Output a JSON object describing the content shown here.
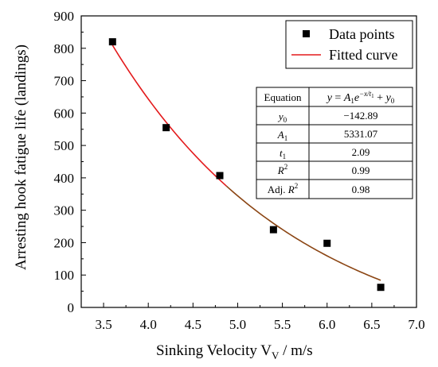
{
  "chart_data": {
    "type": "scatter",
    "xlabel": "Sinking Velocity V",
    "xlabel_sub": "V",
    "xlabel_unit": " / m/s",
    "ylabel": "Arresting hook fatigue life (landings)",
    "xlim": [
      3.25,
      7.0
    ],
    "ylim": [
      0,
      900
    ],
    "xticks": [
      "3.5",
      "4.0",
      "4.5",
      "5.0",
      "5.5",
      "6.0",
      "6.5",
      "7.0"
    ],
    "yticks": [
      "0",
      "100",
      "200",
      "300",
      "400",
      "500",
      "600",
      "700",
      "800",
      "900"
    ],
    "grid": false,
    "legend_position": "top-right",
    "series": [
      {
        "name": "Data points",
        "marker": "square",
        "color": "#000000",
        "x": [
          3.6,
          4.2,
          4.8,
          5.4,
          6.0,
          6.6
        ],
        "y": [
          820,
          555,
          407,
          240,
          198,
          62
        ]
      },
      {
        "name": "Fitted curve",
        "kind": "line",
        "color": "#e31a1c",
        "color_lower": "#8b4513",
        "x_range": [
          3.6,
          6.6
        ],
        "equation": {
          "y0": -142.89,
          "A1": 5331.07,
          "t1": 2.09
        }
      }
    ],
    "fit_table": {
      "header": [
        "Equation",
        "y = A1e^{-x/t1} + y0"
      ],
      "rows": [
        {
          "param": "y0",
          "value": "−142.89"
        },
        {
          "param": "A1",
          "value": "5331.07"
        },
        {
          "param": "t1",
          "value": "2.09"
        },
        {
          "param": "R2",
          "value": "0.99"
        },
        {
          "param": "Adj. R2",
          "value": "0.98"
        }
      ]
    }
  }
}
